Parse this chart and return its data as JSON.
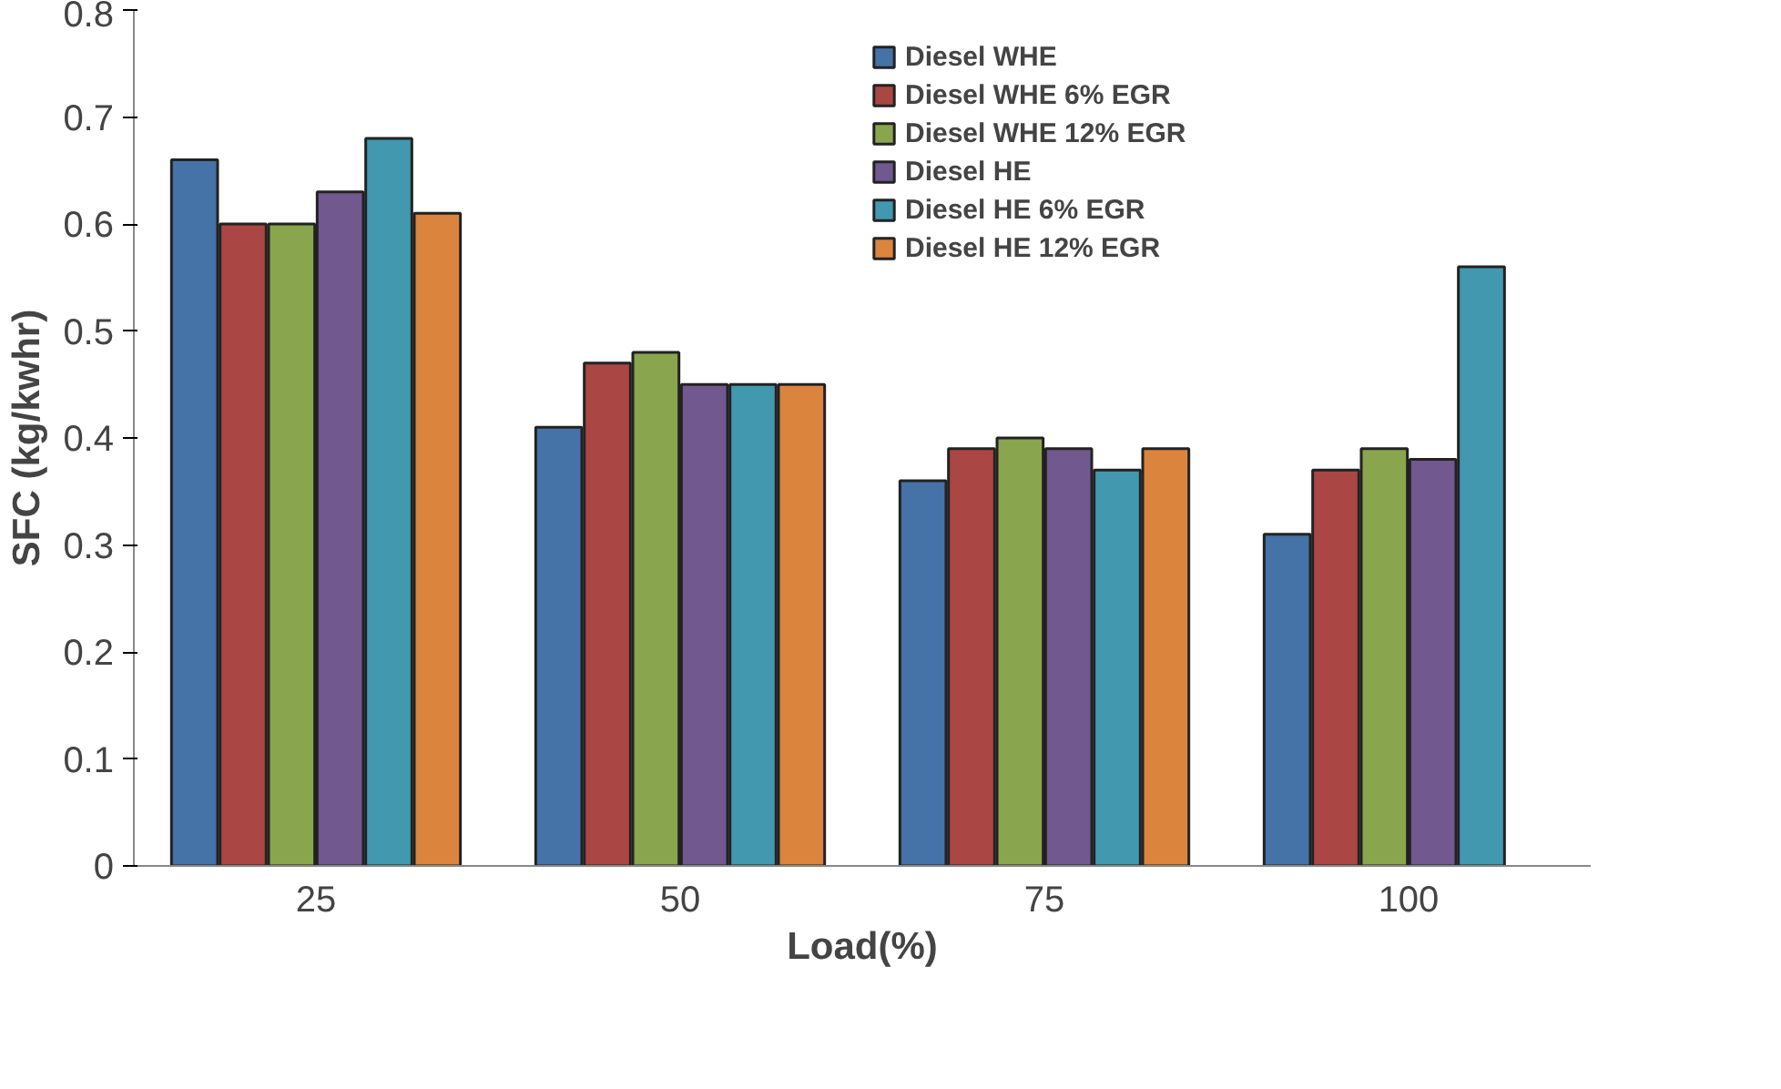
{
  "chart_data": {
    "type": "bar",
    "xlabel": "Load(%)",
    "ylabel": "SFC (kg/kwhr)",
    "categories": [
      "25",
      "50",
      "75",
      "100"
    ],
    "series": [
      {
        "name": "Diesel WHE",
        "color": "#4572a7",
        "values": [
          0.66,
          0.41,
          0.36,
          0.31
        ]
      },
      {
        "name": "Diesel WHE 6% EGR",
        "color": "#aa4643",
        "values": [
          0.6,
          0.47,
          0.39,
          0.37
        ]
      },
      {
        "name": "Diesel WHE 12% EGR",
        "color": "#89a54e",
        "values": [
          0.6,
          0.48,
          0.4,
          0.39
        ]
      },
      {
        "name": "Diesel HE",
        "color": "#71588f",
        "values": [
          0.63,
          0.45,
          0.39,
          0.38
        ]
      },
      {
        "name": "Diesel HE 6% EGR",
        "color": "#4198af",
        "values": [
          0.68,
          0.45,
          0.37,
          0.56
        ]
      },
      {
        "name": "Diesel HE 12% EGR",
        "color": "#db843d",
        "values": [
          0.61,
          0.45,
          0.39,
          null
        ]
      }
    ],
    "ylim": [
      0,
      0.8
    ],
    "yticks": [
      0,
      0.1,
      0.2,
      0.3,
      0.4,
      0.5,
      0.6,
      0.7,
      0.8
    ],
    "grid": false,
    "legend": "top right"
  }
}
